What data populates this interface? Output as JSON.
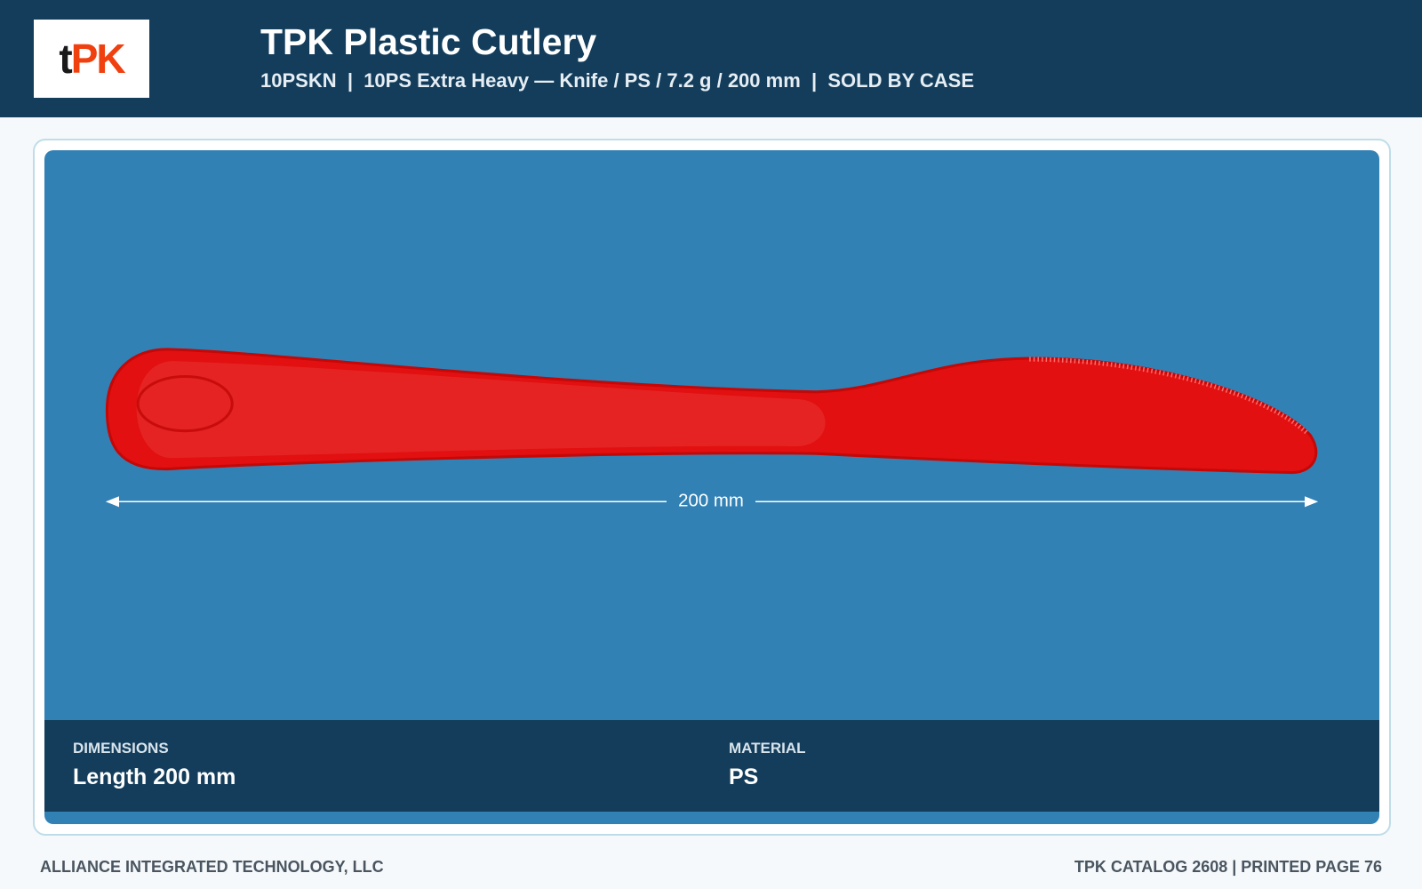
{
  "header": {
    "logo": [
      "t",
      "PK"
    ],
    "title": "TPK Plastic Cutlery",
    "subtitle": "10PSKN  |  10PS Extra Heavy — Knife / PS / 7.2 g / 200 mm  |  SOLD BY CASE"
  },
  "product": {
    "dimension_label": "200 mm"
  },
  "specs": [
    {
      "label": "DIMENSIONS",
      "value": "Length 200 mm"
    },
    {
      "label": "MATERIAL",
      "value": "PS"
    }
  ],
  "footer": {
    "left": "ALLIANCE INTEGRATED TECHNOLOGY, LLC",
    "right": "TPK CATALOG 2608 | PRINTED PAGE 76"
  }
}
